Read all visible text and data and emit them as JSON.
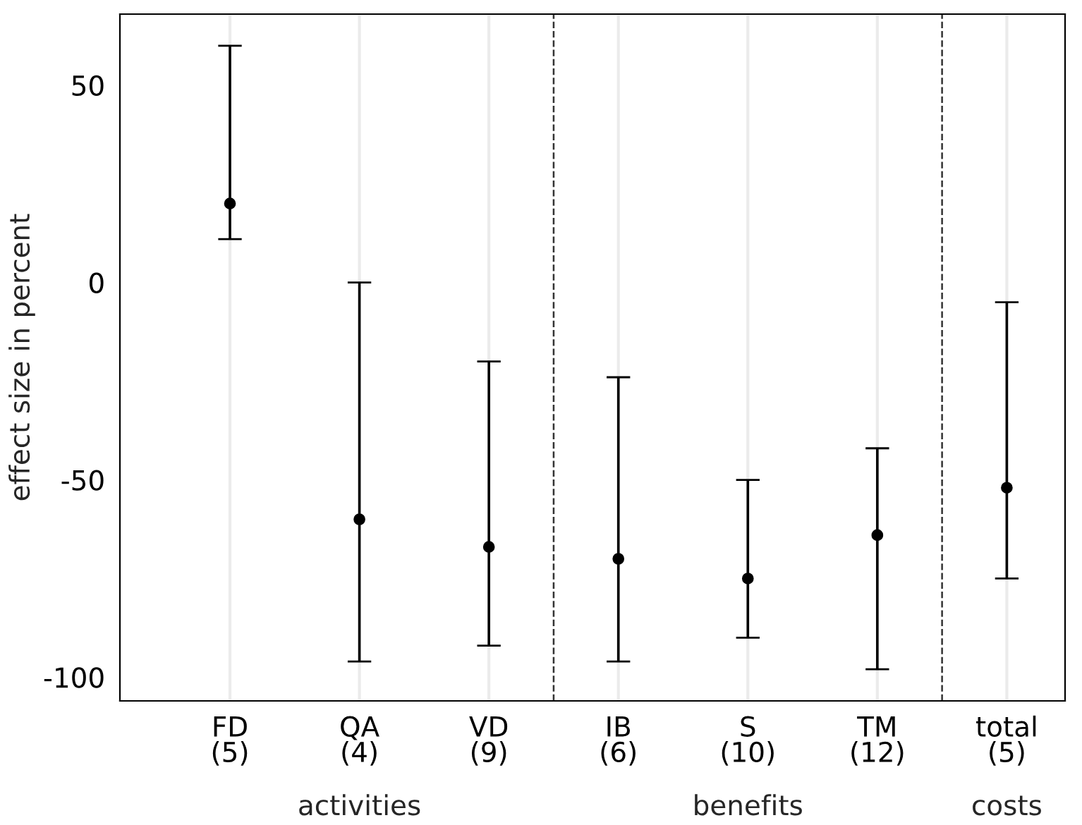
{
  "chart_data": {
    "type": "scatter",
    "ylabel": "effect size in percent",
    "categories": [
      "FD\n(5)",
      "QA\n(4)",
      "VD\n(9)",
      "IB\n(6)",
      "S\n(10)",
      "TM\n(12)",
      "total\n(5)"
    ],
    "series": [
      {
        "color": "#000000",
        "values": [
          20,
          -60,
          -67,
          -70,
          -75,
          -64,
          -52
        ],
        "errors": [
          [
            11,
            60
          ],
          [
            -96,
            0
          ],
          [
            -92,
            -20
          ],
          [
            -96,
            -24
          ],
          [
            -90,
            -50
          ],
          [
            -98,
            -42
          ],
          [
            -75,
            -5
          ]
        ]
      }
    ],
    "ylim": [
      -106,
      68
    ],
    "yticks": [
      -100,
      -50,
      0,
      50
    ],
    "grid": "x",
    "marker": "circle",
    "annotations": [
      "activities",
      "benefits",
      "costs"
    ]
  }
}
